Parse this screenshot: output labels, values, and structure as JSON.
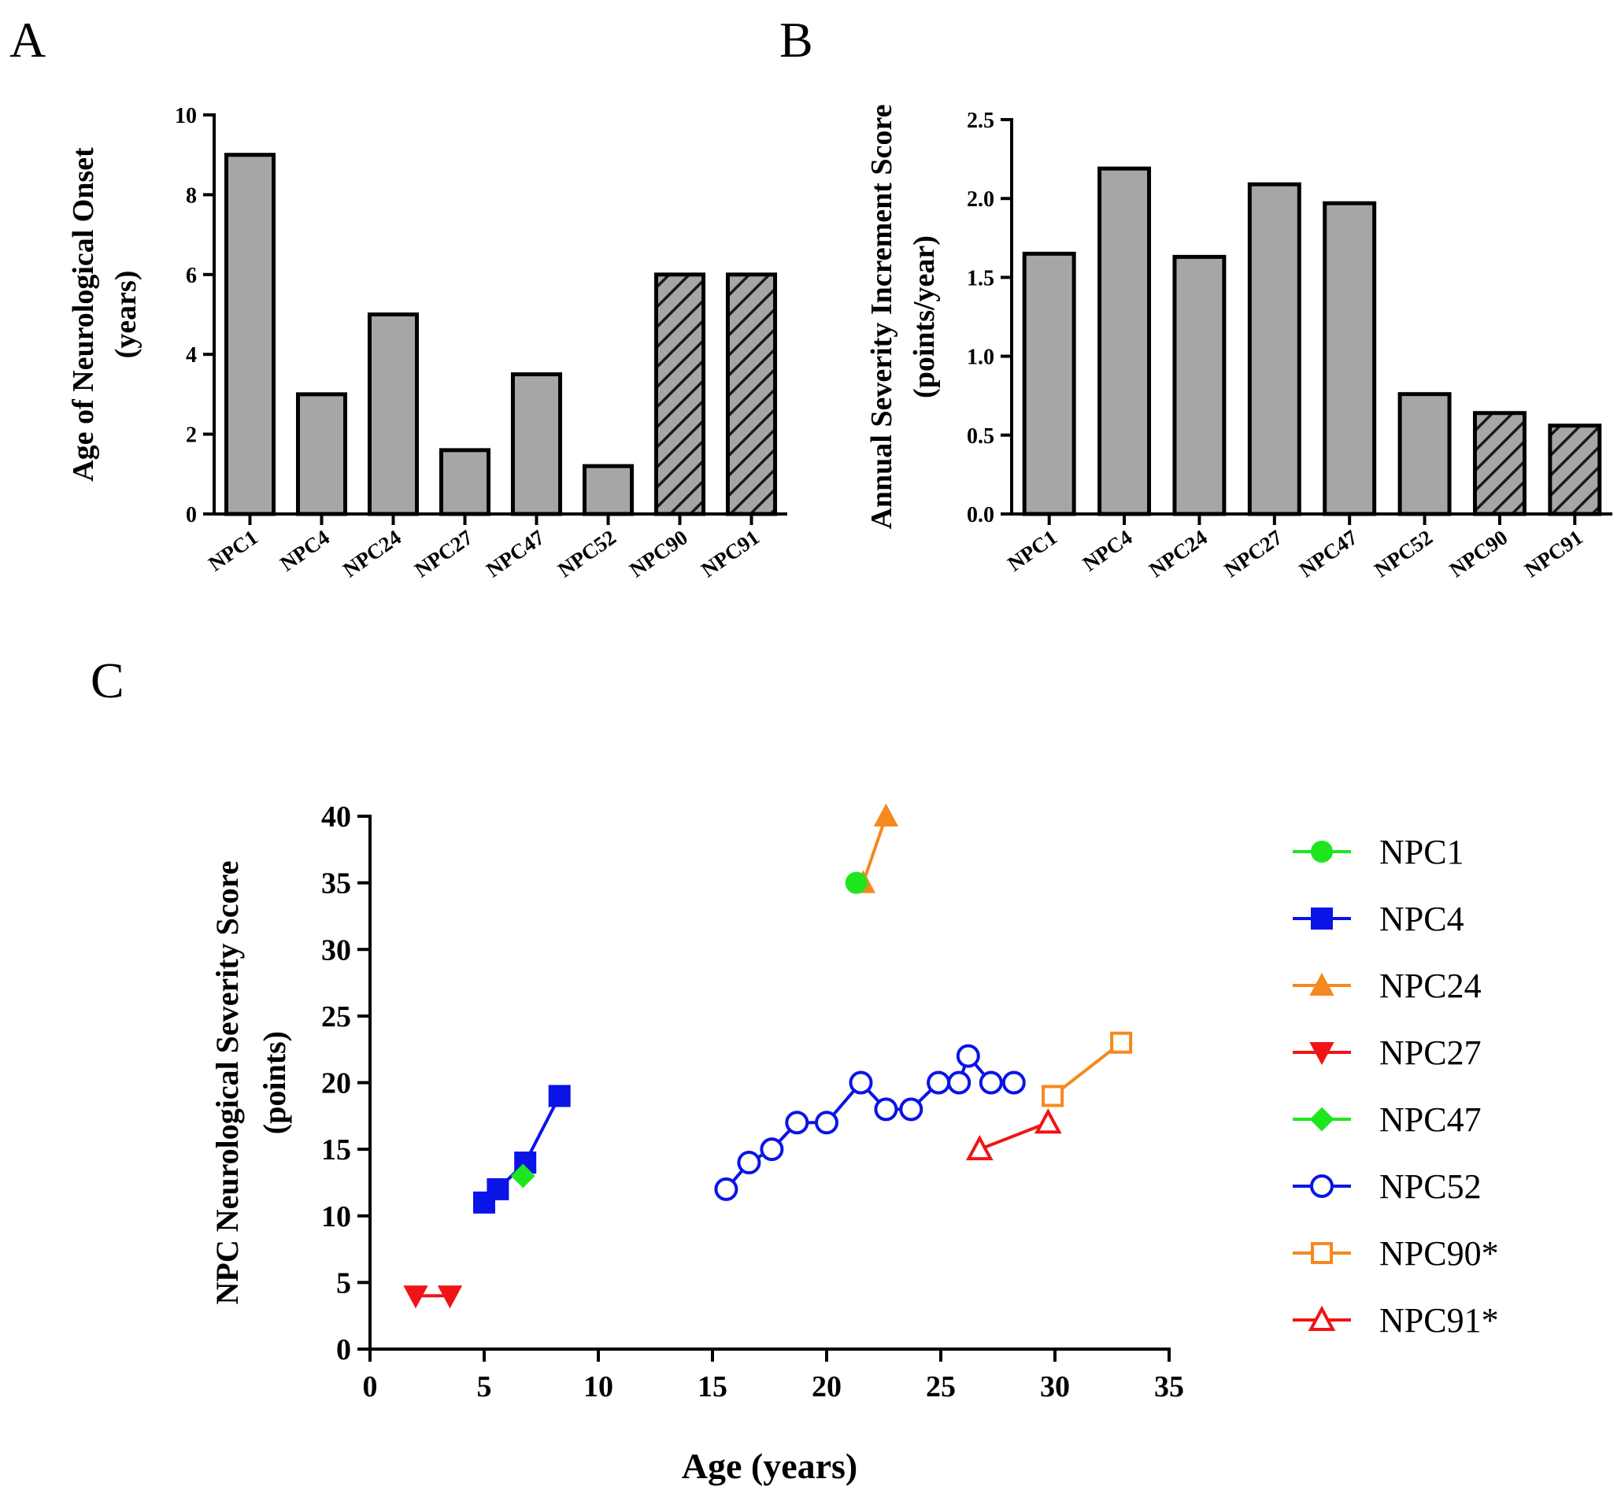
{
  "panels": {
    "a": {
      "label": "A"
    },
    "b": {
      "label": "B"
    },
    "c": {
      "label": "C"
    }
  },
  "chart_data": [
    {
      "id": "a",
      "type": "bar",
      "categories": [
        "NPC1",
        "NPC4",
        "NPC24",
        "NPC27",
        "NPC47",
        "NPC52",
        "NPC90",
        "NPC91"
      ],
      "values": [
        9,
        3,
        5,
        1.6,
        3.5,
        1.2,
        6,
        6
      ],
      "hatched": [
        false,
        false,
        false,
        false,
        false,
        false,
        true,
        true
      ],
      "ylabel_line1": "Age of Neurological Onset",
      "ylabel_line2": "(years)",
      "ylim": [
        0,
        10
      ],
      "yticks": [
        0,
        2,
        4,
        6,
        8,
        10
      ],
      "ytick_labels": [
        "0",
        "2",
        "4",
        "6",
        "8",
        "10"
      ],
      "bar_color": "#a6a6a8",
      "grid": false
    },
    {
      "id": "b",
      "type": "bar",
      "categories": [
        "NPC1",
        "NPC4",
        "NPC24",
        "NPC27",
        "NPC47",
        "NPC52",
        "NPC90",
        "NPC91"
      ],
      "values": [
        1.65,
        2.19,
        1.63,
        2.09,
        1.97,
        0.76,
        0.64,
        0.56
      ],
      "hatched": [
        false,
        false,
        false,
        false,
        false,
        false,
        true,
        true
      ],
      "ylabel_line1": "Annual Severity Increment Score",
      "ylabel_line2": "(points/year)",
      "ylim": [
        0,
        2.5
      ],
      "yticks": [
        0,
        0.5,
        1,
        1.5,
        2,
        2.5
      ],
      "ytick_labels": [
        "0.0",
        "0.5",
        "1.0",
        "1.5",
        "2.0",
        "2.5"
      ],
      "bar_color": "#a6a6a8",
      "grid": false
    },
    {
      "id": "c",
      "type": "line",
      "xlabel": "Age (years)",
      "ylabel_line1": "NPC Neurological Severity Score",
      "ylabel_line2": "(points)",
      "xlim": [
        0,
        35
      ],
      "ylim": [
        0,
        40
      ],
      "xticks": [
        0,
        5,
        10,
        15,
        20,
        25,
        30,
        35
      ],
      "xtick_labels": [
        "0",
        "5",
        "10",
        "15",
        "20",
        "25",
        "30",
        "35"
      ],
      "yticks": [
        0,
        5,
        10,
        15,
        20,
        25,
        30,
        35,
        40
      ],
      "ytick_labels": [
        "0",
        "5",
        "10",
        "15",
        "20",
        "25",
        "30",
        "35",
        "40"
      ],
      "legend_position": "right",
      "grid": false,
      "series": [
        {
          "name": "NPC4",
          "color": "#0a14e6",
          "marker": "square",
          "filled": true,
          "x": [
            5.0,
            5.6,
            6.8,
            8.3
          ],
          "y": [
            11,
            12,
            14,
            19
          ]
        },
        {
          "name": "NPC47",
          "color": "#1ee61e",
          "marker": "diamond",
          "filled": true,
          "x": [
            6.7
          ],
          "y": [
            13
          ]
        },
        {
          "name": "NPC24",
          "color": "#f5891e",
          "marker": "triangle-up",
          "filled": true,
          "x": [
            21.6,
            22.6
          ],
          "y": [
            35,
            40
          ]
        },
        {
          "name": "NPC1",
          "color": "#1ee61e",
          "marker": "circle",
          "filled": true,
          "x": [
            21.3
          ],
          "y": [
            35
          ]
        },
        {
          "name": "NPC27",
          "color": "#f01414",
          "marker": "triangle-down",
          "filled": true,
          "x": [
            2.0,
            3.5
          ],
          "y": [
            4,
            4
          ]
        },
        {
          "name": "NPC52",
          "color": "#0a14e6",
          "marker": "circle",
          "filled": false,
          "x": [
            15.6,
            16.6,
            17.6,
            18.7,
            20.0,
            21.5,
            22.6,
            23.7,
            24.9,
            25.8,
            26.2,
            27.2,
            28.2
          ],
          "y": [
            12,
            14,
            15,
            17,
            17,
            20,
            18,
            18,
            20,
            20,
            22,
            20,
            20
          ]
        },
        {
          "name": "NPC90*",
          "color": "#f5891e",
          "marker": "square",
          "filled": false,
          "x": [
            29.9,
            32.9
          ],
          "y": [
            19,
            23
          ]
        },
        {
          "name": "NPC91*",
          "color": "#f01414",
          "marker": "triangle-up",
          "filled": false,
          "x": [
            26.7,
            29.7
          ],
          "y": [
            15,
            17
          ]
        }
      ],
      "legend_order": [
        "NPC1",
        "NPC4",
        "NPC24",
        "NPC27",
        "NPC47",
        "NPC52",
        "NPC90*",
        "NPC91*"
      ]
    }
  ]
}
